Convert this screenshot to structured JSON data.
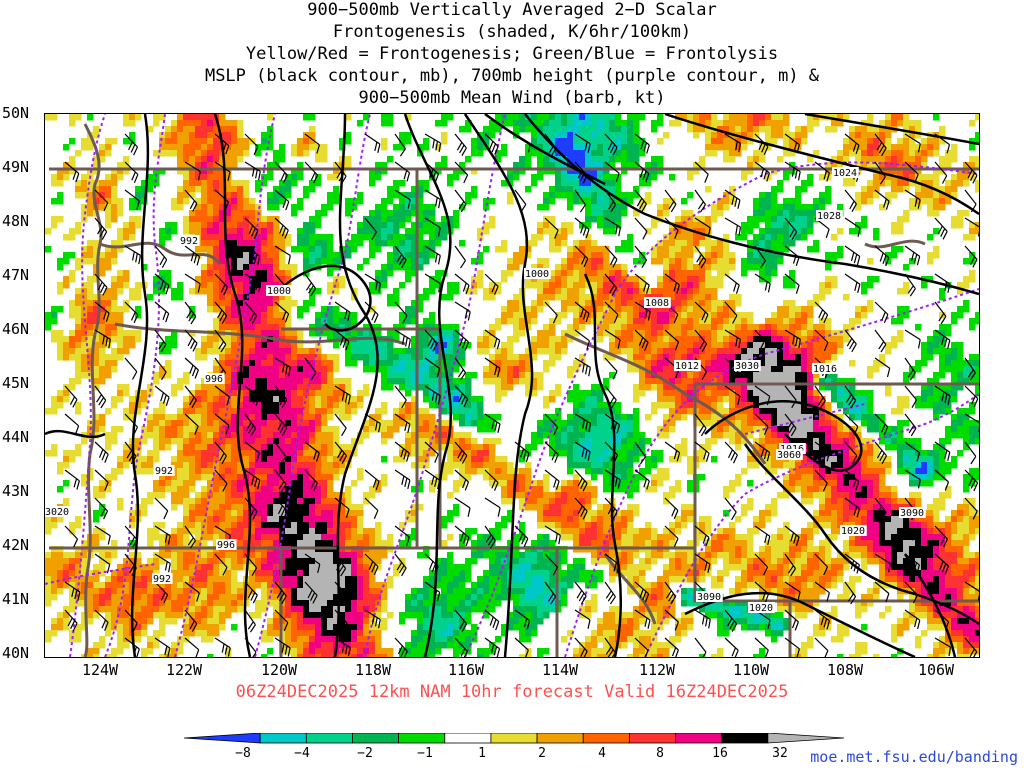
{
  "title_lines": [
    "900−500mb Vertically Averaged 2−D Scalar",
    "Frontogenesis (shaded, K/6hr/100km)",
    "Yellow/Red = Frontogenesis;  Green/Blue = Frontolysis",
    "MSLP (black contour, mb), 700mb height (purple contour, m) &",
    "900−500mb Mean Wind (barb, kt)"
  ],
  "latitude_labels": [
    "50N",
    "49N",
    "48N",
    "47N",
    "46N",
    "45N",
    "44N",
    "43N",
    "42N",
    "41N",
    "40N"
  ],
  "longitude_labels": [
    "124W",
    "122W",
    "120W",
    "118W",
    "116W",
    "114W",
    "112W",
    "110W",
    "108W",
    "106W"
  ],
  "valid_line": "06Z24DEC2025 12km NAM 10hr forecast Valid 16Z24DEC2025",
  "colorbar": {
    "ticks": [
      "−8",
      "−4",
      "−2",
      "−1",
      "1",
      "2",
      "4",
      "8",
      "16",
      "32"
    ],
    "colors": [
      "#1e3cff",
      "#00c8c8",
      "#00d28c",
      "#00b450",
      "#00dc00",
      "#ffffff",
      "#e6dc32",
      "#f0a000",
      "#ff6400",
      "#ff3232",
      "#f00082",
      "#000000",
      "#b4b4b4"
    ]
  },
  "mslp_labels": [
    "992",
    "992",
    "1000",
    "996",
    "992",
    "996",
    "1000",
    "1008",
    "1012",
    "1016",
    "1016",
    "1020",
    "1024",
    "1028",
    "1020"
  ],
  "height_labels": [
    "3030",
    "3090",
    "3090",
    "3020",
    "3060"
  ],
  "credit": "moe.met.fsu.edu/banding"
}
